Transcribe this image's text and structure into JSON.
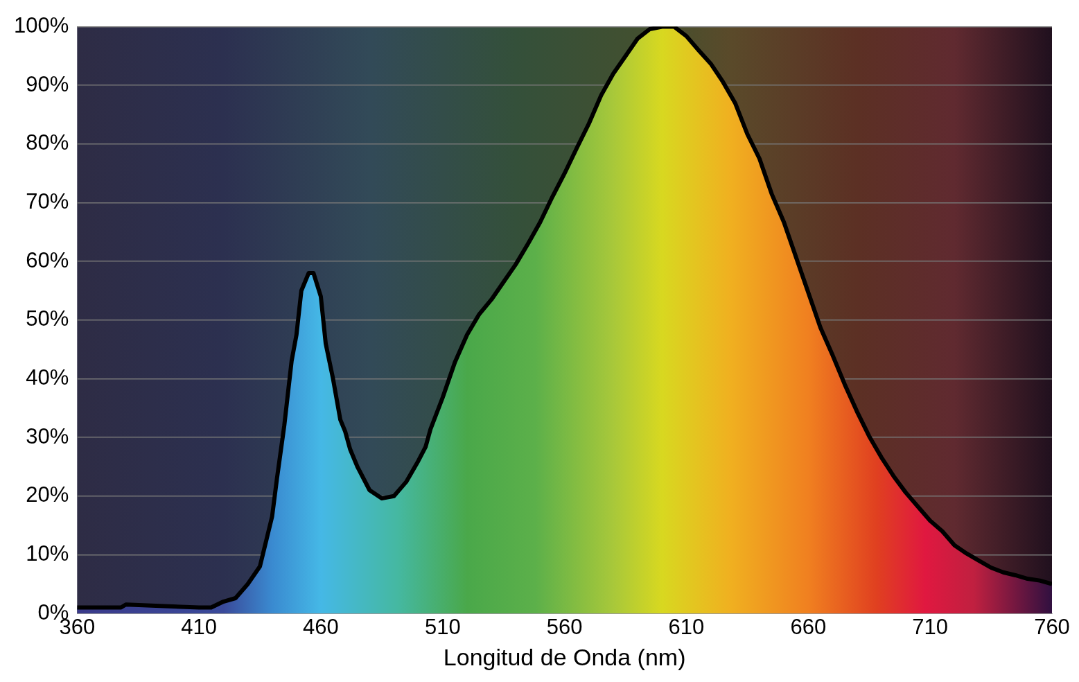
{
  "chart_data": {
    "type": "area",
    "xlabel": "Longitud de Onda (nm)",
    "x": [
      360,
      378,
      380,
      410,
      415,
      420,
      425,
      430,
      435,
      440,
      442,
      445,
      448,
      450,
      452,
      455,
      457,
      460,
      462,
      465,
      468,
      470,
      472,
      475,
      480,
      485,
      490,
      495,
      500,
      503,
      505,
      510,
      515,
      520,
      525,
      530,
      535,
      540,
      545,
      550,
      555,
      560,
      565,
      570,
      575,
      580,
      585,
      590,
      595,
      600,
      605,
      610,
      615,
      620,
      625,
      630,
      635,
      640,
      645,
      650,
      655,
      660,
      665,
      670,
      675,
      680,
      685,
      690,
      695,
      700,
      705,
      710,
      715,
      720,
      725,
      730,
      735,
      740,
      745,
      750,
      755,
      760
    ],
    "series": [
      {
        "color": "#000000",
        "values": [
          1,
          1,
          1.5,
          1,
          1,
          2,
          2.6,
          5,
          8,
          16.5,
          23,
          32,
          43,
          47.5,
          55,
          58,
          58,
          54,
          46,
          40,
          33,
          31,
          28,
          25,
          21,
          19.6,
          20,
          22.4,
          26,
          28.4,
          31.4,
          36.8,
          42.8,
          47.5,
          51,
          53.5,
          56.5,
          59.5,
          63,
          66.7,
          71,
          75,
          79.3,
          83.5,
          88.3,
          92,
          95,
          98,
          99.6,
          100,
          100,
          98.4,
          96,
          93.7,
          90.6,
          87,
          81.7,
          77.5,
          71.5,
          66.7,
          60.7,
          54.7,
          48.7,
          44,
          39,
          34.4,
          30.2,
          26.6,
          23.4,
          20.6,
          18.2,
          15.8,
          14,
          11.6,
          10.2,
          9,
          7.8,
          7,
          6.5,
          5.9,
          5.6,
          5
        ]
      }
    ],
    "xlim": [
      360,
      760
    ],
    "xticks": [
      360,
      410,
      460,
      510,
      560,
      610,
      660,
      710,
      760
    ],
    "ylim": [
      0,
      100
    ],
    "yticks": [
      {
        "value": 0,
        "label": "0%"
      },
      {
        "value": 10,
        "label": "10%"
      },
      {
        "value": 20,
        "label": "20%"
      },
      {
        "value": 30,
        "label": "30%"
      },
      {
        "value": 40,
        "label": "40%"
      },
      {
        "value": 50,
        "label": "50%"
      },
      {
        "value": 60,
        "label": "60%"
      },
      {
        "value": 70,
        "label": "70%"
      },
      {
        "value": 80,
        "label": "80%"
      },
      {
        "value": 90,
        "label": "90%"
      },
      {
        "value": 100,
        "label": "100%"
      }
    ],
    "grid": "y",
    "legend": false,
    "marker": "none",
    "line_style": "solid"
  }
}
